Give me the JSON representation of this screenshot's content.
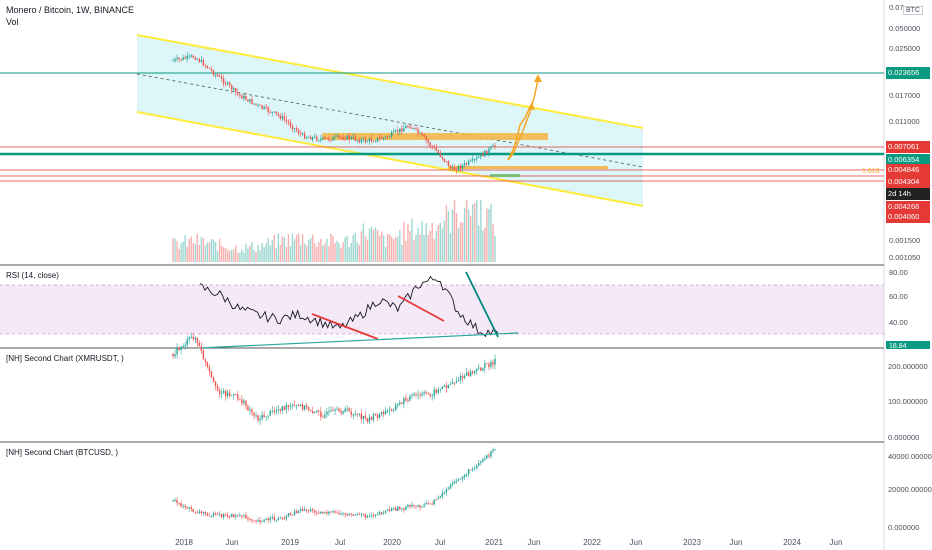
{
  "header": {
    "title": "Monero / Bitcoin, 1W, BINANCE",
    "volume_label": "Vol",
    "currency_tag": "BTC"
  },
  "axis_labels": {
    "price": [
      "0.07",
      "0.050000",
      "0.025000",
      "0.017000",
      "0.011000",
      "0.001500",
      "0.001050"
    ],
    "rsi": [
      "80.00",
      "60.00",
      "40.00"
    ],
    "xmr_usd": [
      "200.000000",
      "100.000000",
      "0.000000"
    ],
    "btc_usd": [
      "40000.000000",
      "20000.000000",
      "0.000000"
    ],
    "x": [
      "2018",
      "Jun",
      "2019",
      "Jul",
      "2020",
      "Jul",
      "2021",
      "Jun",
      "2022",
      "Jun",
      "2023",
      "Jun",
      "2024",
      "Jun"
    ]
  },
  "badges": [
    {
      "text": "0.023656",
      "color": "#089981"
    },
    {
      "text": "0.007061",
      "color": "#e53935"
    },
    {
      "text": "0.006354",
      "color": "#089981"
    },
    {
      "text": "0.004846",
      "color": "#e53935"
    },
    {
      "text": "0.004304",
      "color": "#e53935"
    },
    {
      "text": "2d 14h",
      "color": "#222222"
    },
    {
      "text": "0.004266",
      "color": "#e53935"
    },
    {
      "text": "0.004060",
      "color": "#e53935"
    }
  ],
  "fib_label": "1.618",
  "panes": {
    "rsi_label": "RSI (14, close)",
    "rsi_value": "18.84",
    "xmr_label": "[NH] Second Chart (XMRUSDT, )",
    "btc_label": "[NH] Second Chart (BTCUSD, )"
  },
  "colors": {
    "up": "#26a69a",
    "down": "#ef5350",
    "channel": "#ffeb3b",
    "channel_fill": "#b2ebf2",
    "zone": "#f5b342",
    "projection": "#f5a623",
    "rsi_band": "#e1bee7"
  },
  "chart_data": [
    {
      "type": "candlestick",
      "title": "Monero / Bitcoin, 1W, BINANCE",
      "x": [
        "2018-01",
        "2018-03",
        "2018-06",
        "2018-09",
        "2019-01",
        "2019-04",
        "2019-07",
        "2019-10",
        "2020-01",
        "2020-03",
        "2020-05",
        "2020-08",
        "2020-10",
        "2020-12",
        "2021-01",
        "2021-02"
      ],
      "close": [
        0.028,
        0.03,
        0.022,
        0.016,
        0.013,
        0.011,
        0.008,
        0.0075,
        0.0078,
        0.0073,
        0.0078,
        0.0095,
        0.0068,
        0.0045,
        0.0052,
        0.0067
      ],
      "volume": [
        0.25,
        0.3,
        0.25,
        0.2,
        0.22,
        0.3,
        0.35,
        0.3,
        0.28,
        0.45,
        0.3,
        0.45,
        0.5,
        0.65,
        0.85,
        0.55
      ],
      "ylim": [
        0.00105,
        0.07
      ],
      "scale": "log",
      "horizontal_levels": [
        0.023656,
        0.007061,
        0.006354,
        0.004846,
        0.004304
      ],
      "zones": [
        [
          0.0083,
          0.0089
        ],
        [
          0.0054,
          0.0056
        ]
      ]
    },
    {
      "type": "line",
      "title": "RSI (14, close)",
      "x": [
        "2018-01",
        "2018-03",
        "2018-06",
        "2018-09",
        "2019-01",
        "2019-04",
        "2019-07",
        "2019-10",
        "2020-01",
        "2020-03",
        "2020-05",
        "2020-08",
        "2020-10",
        "2020-12",
        "2021-01",
        "2021-02"
      ],
      "values": [
        68,
        62,
        50,
        45,
        42,
        46,
        40,
        34,
        44,
        58,
        50,
        70,
        76,
        48,
        33,
        30
      ],
      "ylim": [
        25,
        82
      ],
      "band": [
        30,
        70
      ]
    },
    {
      "type": "candlestick",
      "title": "[NH] Second Chart (XMRUSDT, )",
      "x": [
        "2018-01",
        "2018-03",
        "2018-06",
        "2018-09",
        "2019-01",
        "2019-04",
        "2019-07",
        "2019-10",
        "2020-01",
        "2020-03",
        "2020-05",
        "2020-08",
        "2020-10",
        "2020-12",
        "2021-01",
        "2021-02"
      ],
      "close": [
        230,
        280,
        130,
        110,
        50,
        80,
        85,
        60,
        75,
        48,
        70,
        110,
        120,
        150,
        180,
        210
      ],
      "ylim": [
        0,
        240
      ]
    },
    {
      "type": "candlestick",
      "title": "[NH] Second Chart (BTCUSD, )",
      "x": [
        "2018-01",
        "2018-03",
        "2018-06",
        "2018-09",
        "2019-01",
        "2019-04",
        "2019-07",
        "2019-10",
        "2020-01",
        "2020-03",
        "2020-05",
        "2020-08",
        "2020-10",
        "2020-12",
        "2021-01",
        "2021-02"
      ],
      "close": [
        15000,
        9000,
        6500,
        6500,
        3700,
        5000,
        10000,
        8500,
        7500,
        6000,
        9500,
        11500,
        13000,
        24000,
        34000,
        44000
      ],
      "ylim": [
        0,
        45000
      ]
    }
  ]
}
